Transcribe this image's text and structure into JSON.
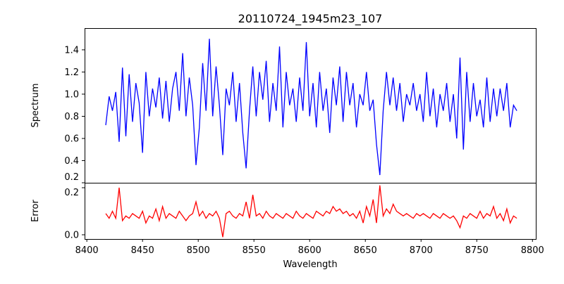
{
  "chart_data": [
    {
      "type": "line",
      "title": "20110724_1945m23_107",
      "xlabel": "",
      "ylabel": "Spectrum",
      "xlim": [
        8398,
        8803
      ],
      "ylim": [
        0.2,
        1.596
      ],
      "yticks": [
        0.2,
        0.4,
        0.6,
        0.8,
        1.0,
        1.2,
        1.4
      ],
      "ytick_labels": [
        "0.2",
        "0.4",
        "0.6",
        "0.8",
        "1.0",
        "1.2",
        "1.4"
      ],
      "color": "#0000ff",
      "series": [
        {
          "name": "Spectrum",
          "x_start": 8417,
          "x_step": 3,
          "values": [
            0.72,
            0.98,
            0.85,
            1.02,
            0.57,
            1.24,
            0.62,
            1.18,
            0.75,
            1.1,
            0.92,
            0.47,
            1.2,
            0.8,
            1.05,
            0.88,
            1.15,
            0.78,
            1.12,
            0.75,
            1.05,
            1.2,
            0.85,
            1.37,
            0.8,
            1.15,
            0.9,
            0.36,
            0.7,
            1.28,
            0.85,
            1.5,
            0.8,
            1.25,
            0.9,
            0.45,
            1.05,
            0.9,
            1.2,
            0.75,
            1.1,
            0.65,
            0.33,
            0.85,
            1.25,
            0.8,
            1.2,
            0.95,
            1.3,
            0.75,
            1.1,
            0.85,
            1.43,
            0.7,
            1.2,
            0.9,
            1.05,
            0.75,
            1.15,
            0.85,
            1.47,
            0.8,
            1.1,
            0.7,
            1.2,
            0.85,
            1.05,
            0.65,
            1.15,
            0.9,
            1.25,
            0.75,
            1.2,
            0.9,
            1.1,
            0.7,
            1.0,
            0.9,
            1.2,
            0.85,
            0.95,
            0.55,
            0.27,
            0.85,
            1.2,
            0.9,
            1.15,
            0.85,
            1.1,
            0.75,
            1.0,
            0.9,
            1.1,
            0.85,
            1.0,
            0.75,
            1.2,
            0.8,
            1.05,
            0.7,
            1.0,
            0.85,
            1.1,
            0.75,
            1.0,
            0.6,
            1.33,
            0.5,
            1.2,
            0.75,
            1.1,
            0.8,
            0.95,
            0.7,
            1.15,
            0.75,
            1.05,
            0.8,
            1.05,
            0.85,
            1.1,
            0.7,
            0.9,
            0.85
          ]
        }
      ]
    },
    {
      "type": "line",
      "xlabel": "Wavelength",
      "ylabel": "Error",
      "xlim": [
        8398,
        8803
      ],
      "ylim": [
        -0.018,
        0.221
      ],
      "yticks": [
        0.0,
        0.2
      ],
      "ytick_labels": [
        "0.0",
        "0.2"
      ],
      "xticks": [
        8400,
        8450,
        8500,
        8550,
        8600,
        8650,
        8700,
        8750,
        8800
      ],
      "xtick_labels": [
        "8400",
        "8450",
        "8500",
        "8550",
        "8600",
        "8650",
        "8700",
        "8750",
        "8800"
      ],
      "color": "#ff0000",
      "series": [
        {
          "name": "Error",
          "x_start": 8417,
          "x_step": 3,
          "values": [
            0.09,
            0.07,
            0.1,
            0.07,
            0.2,
            0.06,
            0.08,
            0.07,
            0.09,
            0.08,
            0.07,
            0.1,
            0.05,
            0.08,
            0.07,
            0.11,
            0.06,
            0.12,
            0.07,
            0.09,
            0.08,
            0.07,
            0.1,
            0.08,
            0.06,
            0.08,
            0.09,
            0.14,
            0.08,
            0.1,
            0.07,
            0.09,
            0.08,
            0.1,
            0.07,
            -0.01,
            0.09,
            0.1,
            0.08,
            0.07,
            0.09,
            0.08,
            0.14,
            0.07,
            0.17,
            0.08,
            0.09,
            0.07,
            0.1,
            0.08,
            0.07,
            0.09,
            0.08,
            0.07,
            0.09,
            0.08,
            0.07,
            0.1,
            0.08,
            0.07,
            0.09,
            0.08,
            0.07,
            0.1,
            0.09,
            0.08,
            0.1,
            0.09,
            0.12,
            0.1,
            0.11,
            0.09,
            0.1,
            0.08,
            0.09,
            0.07,
            0.1,
            0.05,
            0.12,
            0.08,
            0.15,
            0.05,
            0.21,
            0.08,
            0.11,
            0.09,
            0.13,
            0.1,
            0.09,
            0.08,
            0.09,
            0.08,
            0.07,
            0.09,
            0.08,
            0.09,
            0.08,
            0.07,
            0.09,
            0.08,
            0.07,
            0.09,
            0.08,
            0.07,
            0.08,
            0.06,
            0.03,
            0.08,
            0.07,
            0.09,
            0.08,
            0.07,
            0.1,
            0.07,
            0.09,
            0.08,
            0.12,
            0.07,
            0.09,
            0.06,
            0.11,
            0.05,
            0.08,
            0.07
          ]
        }
      ]
    }
  ]
}
